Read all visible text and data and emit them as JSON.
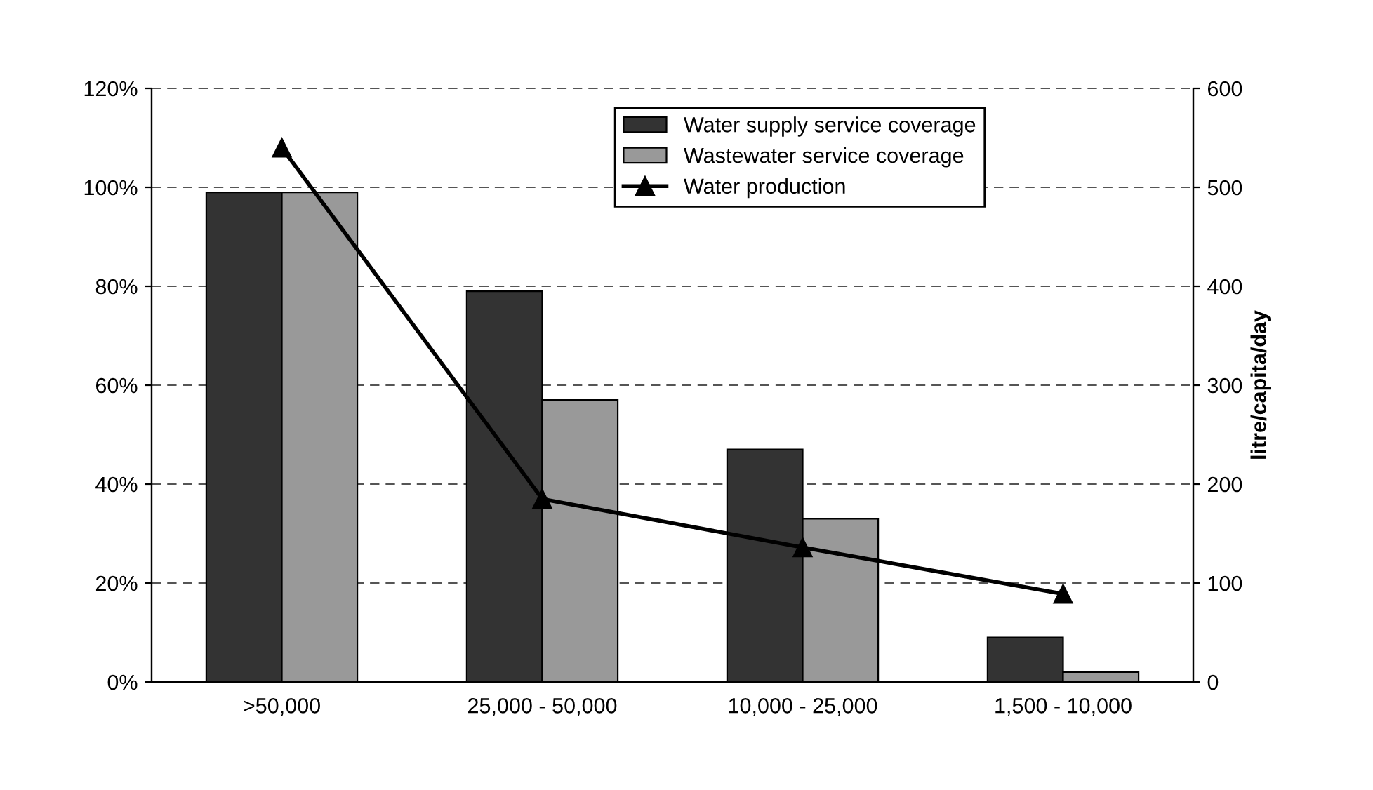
{
  "chart_data": {
    "type": "bar",
    "categories": [
      ">50,000",
      "25,000 - 50,000",
      "10,000 - 25,000",
      "1,500 - 10,000"
    ],
    "series": [
      {
        "name": "Water supply service coverage",
        "color": "#333333",
        "values": [
          99,
          79,
          47,
          9
        ]
      },
      {
        "name": "Wastewater service coverage",
        "color": "#999999",
        "values": [
          99,
          57,
          33,
          2
        ]
      },
      {
        "name": "Water production",
        "type": "line",
        "axis": "y2",
        "color": "#000000",
        "marker": "triangle",
        "values": [
          540,
          185,
          136,
          89
        ]
      }
    ],
    "ylim": [
      0,
      120
    ],
    "yticks": [
      {
        "value": 0,
        "label": "0%"
      },
      {
        "value": 20,
        "label": "20%"
      },
      {
        "value": 40,
        "label": "40%"
      },
      {
        "value": 60,
        "label": "60%"
      },
      {
        "value": 80,
        "label": "80%"
      },
      {
        "value": 100,
        "label": "100%"
      },
      {
        "value": 120,
        "label": "120%"
      }
    ],
    "y2lim": [
      0,
      600
    ],
    "y2ticks": [
      0,
      100,
      200,
      300,
      400,
      500,
      600
    ],
    "y2label": "litre/capita/day",
    "grid": "y",
    "legend": "top right"
  }
}
